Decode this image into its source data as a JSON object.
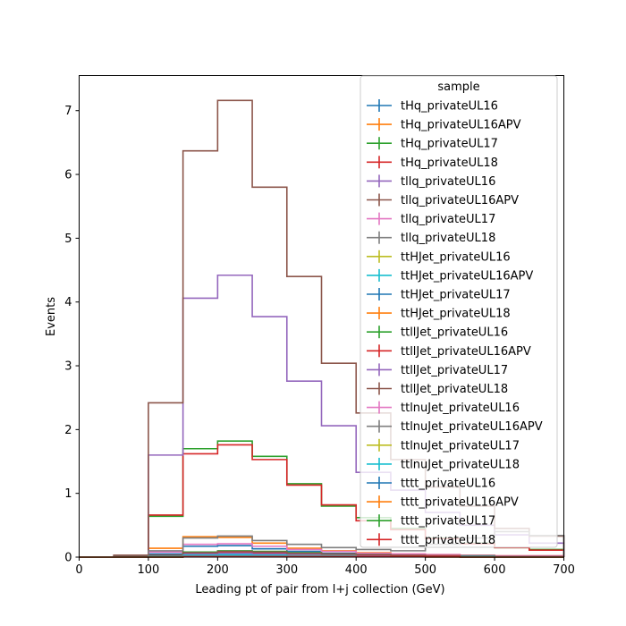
{
  "chart_data": {
    "type": "step",
    "title": "",
    "xlabel": "Leading pt of pair from l+j collection (GeV)",
    "ylabel": "Events",
    "xlim": [
      0,
      700
    ],
    "ylim": [
      0,
      7.55
    ],
    "xticks": [
      0,
      100,
      200,
      300,
      400,
      500,
      600,
      700
    ],
    "yticks": [
      0,
      1,
      2,
      3,
      4,
      5,
      6,
      7
    ],
    "legend_title": "sample",
    "legend_position": "upper right",
    "grid": false,
    "bin_edges": [
      0,
      50,
      100,
      150,
      200,
      250,
      300,
      350,
      400,
      450,
      500,
      550,
      600,
      650,
      700
    ],
    "series": [
      {
        "name": "tHq_privateUL16",
        "color": "#1f77b4",
        "values": [
          0,
          0.005,
          0.05,
          0.17,
          0.18,
          0.13,
          0.09,
          0.06,
          0.04,
          0.03,
          0.02,
          0.01,
          0.01,
          0.01
        ]
      },
      {
        "name": "tHq_privateUL16APV",
        "color": "#ff7f0e",
        "values": [
          0,
          0.01,
          0.14,
          0.32,
          0.31,
          0.22,
          0.14,
          0.1,
          0.07,
          0.05,
          0.04,
          0.03,
          0.02,
          0.02
        ]
      },
      {
        "name": "tHq_privateUL17",
        "color": "#2ca02c",
        "values": [
          0,
          0.01,
          0.64,
          1.7,
          1.82,
          1.58,
          1.15,
          0.8,
          0.62,
          0.45,
          0.3,
          0.22,
          0.15,
          0.12
        ]
      },
      {
        "name": "tHq_privateUL18",
        "color": "#d62728",
        "values": [
          0,
          0.01,
          0.66,
          1.62,
          1.76,
          1.53,
          1.13,
          0.82,
          0.57,
          0.43,
          0.29,
          0.21,
          0.15,
          0.11
        ]
      },
      {
        "name": "tllq_privateUL16",
        "color": "#9467bd",
        "values": [
          0,
          0.02,
          1.6,
          4.06,
          4.42,
          3.77,
          2.76,
          2.06,
          1.33,
          1.05,
          0.7,
          0.5,
          0.35,
          0.22
        ]
      },
      {
        "name": "tllq_privateUL16APV",
        "color": "#8c564b",
        "values": [
          0,
          0.03,
          2.42,
          6.37,
          7.16,
          5.8,
          4.4,
          3.04,
          2.26,
          1.53,
          1.1,
          0.8,
          0.45,
          0.33
        ]
      },
      {
        "name": "tllq_privateUL17",
        "color": "#e377c2",
        "values": [
          0,
          0.005,
          0.08,
          0.2,
          0.21,
          0.17,
          0.12,
          0.09,
          0.06,
          0.05,
          0.04,
          0.03,
          0.02,
          0.02
        ]
      },
      {
        "name": "tllq_privateUL18",
        "color": "#7f7f7f",
        "values": [
          0,
          0.01,
          0.1,
          0.3,
          0.33,
          0.26,
          0.2,
          0.15,
          0.12,
          0.1,
          0.2,
          0.3,
          0.4,
          0.34
        ]
      },
      {
        "name": "ttHJet_privateUL16",
        "color": "#bcbd22",
        "values": [
          0,
          0,
          0.02,
          0.05,
          0.06,
          0.05,
          0.04,
          0.03,
          0.02,
          0.02,
          0.01,
          0.01,
          0.01,
          0.01
        ]
      },
      {
        "name": "ttHJet_privateUL16APV",
        "color": "#17becf",
        "values": [
          0,
          0,
          0.01,
          0.03,
          0.04,
          0.03,
          0.03,
          0.02,
          0.02,
          0.01,
          0.01,
          0.01,
          0.01,
          0
        ]
      },
      {
        "name": "ttHJet_privateUL17",
        "color": "#1f77b4",
        "values": [
          0,
          0,
          0.02,
          0.05,
          0.06,
          0.05,
          0.04,
          0.03,
          0.03,
          0.02,
          0.02,
          0.01,
          0.01,
          0.01
        ]
      },
      {
        "name": "ttHJet_privateUL18",
        "color": "#ff7f0e",
        "values": [
          0,
          0,
          0.03,
          0.07,
          0.08,
          0.07,
          0.06,
          0.04,
          0.03,
          0.03,
          0.02,
          0.02,
          0.01,
          0.01
        ]
      },
      {
        "name": "ttllJet_privateUL16",
        "color": "#2ca02c",
        "values": [
          0,
          0,
          0.03,
          0.08,
          0.1,
          0.09,
          0.07,
          0.05,
          0.04,
          0.03,
          0.02,
          0.02,
          0.01,
          0.01
        ]
      },
      {
        "name": "ttllJet_privateUL16APV",
        "color": "#d62728",
        "values": [
          0,
          0,
          0.02,
          0.06,
          0.07,
          0.06,
          0.05,
          0.04,
          0.03,
          0.02,
          0.02,
          0.01,
          0.01,
          0.01
        ]
      },
      {
        "name": "ttllJet_privateUL17",
        "color": "#9467bd",
        "values": [
          0,
          0,
          0.02,
          0.05,
          0.06,
          0.05,
          0.04,
          0.03,
          0.02,
          0.02,
          0.01,
          0.01,
          0.01,
          0.01
        ]
      },
      {
        "name": "ttllJet_privateUL18",
        "color": "#8c564b",
        "values": [
          0,
          0,
          0.03,
          0.07,
          0.09,
          0.08,
          0.06,
          0.05,
          0.04,
          0.03,
          0.02,
          0.02,
          0.01,
          0.01
        ]
      },
      {
        "name": "ttlnuJet_privateUL16",
        "color": "#e377c2",
        "values": [
          0,
          0,
          0.01,
          0.02,
          0.02,
          0.02,
          0.02,
          0.01,
          0.01,
          0.01,
          0.01,
          0,
          0,
          0
        ]
      },
      {
        "name": "ttlnuJet_privateUL16APV",
        "color": "#7f7f7f",
        "values": [
          0,
          0,
          0.01,
          0.02,
          0.03,
          0.02,
          0.02,
          0.02,
          0.01,
          0.01,
          0.01,
          0.01,
          0,
          0
        ]
      },
      {
        "name": "ttlnuJet_privateUL17",
        "color": "#bcbd22",
        "values": [
          0,
          0,
          0.01,
          0.02,
          0.03,
          0.02,
          0.02,
          0.02,
          0.01,
          0.01,
          0.01,
          0,
          0,
          0
        ]
      },
      {
        "name": "ttlnuJet_privateUL18",
        "color": "#17becf",
        "values": [
          0,
          0,
          0.01,
          0.03,
          0.03,
          0.03,
          0.02,
          0.02,
          0.01,
          0.01,
          0.01,
          0.01,
          0,
          0
        ]
      },
      {
        "name": "tttt_privateUL16",
        "color": "#1f77b4",
        "values": [
          0,
          0,
          0,
          0.01,
          0.01,
          0.01,
          0.01,
          0.01,
          0.01,
          0.01,
          0,
          0,
          0,
          0
        ]
      },
      {
        "name": "tttt_privateUL16APV",
        "color": "#ff7f0e",
        "values": [
          0,
          0,
          0,
          0.01,
          0.01,
          0.01,
          0.01,
          0.01,
          0.01,
          0.01,
          0,
          0,
          0,
          0
        ]
      },
      {
        "name": "tttt_privateUL17",
        "color": "#2ca02c",
        "values": [
          0,
          0,
          0,
          0.01,
          0.01,
          0.01,
          0.01,
          0.01,
          0.01,
          0.01,
          0.01,
          0,
          0,
          0
        ]
      },
      {
        "name": "tttt_privateUL18",
        "color": "#d62728",
        "values": [
          0,
          0,
          0,
          0.01,
          0.01,
          0.01,
          0.01,
          0.01,
          0.01,
          0.01,
          0.01,
          0,
          0,
          0
        ]
      }
    ]
  }
}
